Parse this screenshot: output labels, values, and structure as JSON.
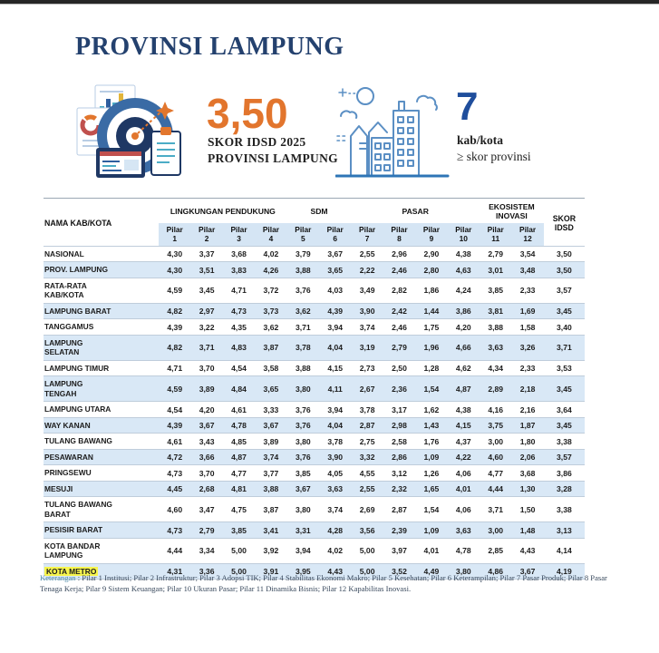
{
  "page": {
    "title": "PROVINSI LAMPUNG"
  },
  "stats": {
    "score": {
      "value": "3,50",
      "label_line1": "SKOR IDSD 2025",
      "label_line2": "PROVINSI LAMPUNG"
    },
    "count": {
      "value": "7",
      "label_line1": "kab/kota",
      "label_line2": "≥ skor provinsi"
    }
  },
  "table": {
    "name_header": "NAMA KAB/KOTA",
    "score_header": "SKOR IDSD",
    "pilar_word": "Pilar",
    "pilar_numbers": [
      "1",
      "2",
      "3",
      "4",
      "5",
      "6",
      "7",
      "8",
      "9",
      "10",
      "11",
      "12"
    ],
    "groups": [
      {
        "label": "LINGKUNGAN PENDUKUNG",
        "span": 4
      },
      {
        "label": "SDM",
        "span": 2
      },
      {
        "label": "PASAR",
        "span": 4
      },
      {
        "label": "EKOSISTEM INOVASI",
        "span": 2
      }
    ],
    "rows": [
      {
        "name": "NASIONAL",
        "values": [
          "4,30",
          "3,37",
          "3,68",
          "4,02",
          "3,79",
          "3,67",
          "2,55",
          "2,96",
          "2,90",
          "4,38",
          "2,79",
          "3,54"
        ],
        "score": "3,50",
        "highlight": false
      },
      {
        "name": "PROV. LAMPUNG",
        "values": [
          "4,30",
          "3,51",
          "3,83",
          "4,26",
          "3,88",
          "3,65",
          "2,22",
          "2,46",
          "2,80",
          "4,63",
          "3,01",
          "3,48"
        ],
        "score": "3,50",
        "highlight": false
      },
      {
        "name": "RATA-RATA\nKAB/KOTA",
        "values": [
          "4,59",
          "3,45",
          "4,71",
          "3,72",
          "3,76",
          "4,03",
          "3,49",
          "2,82",
          "1,86",
          "4,24",
          "3,85",
          "2,33"
        ],
        "score": "3,57",
        "highlight": false
      },
      {
        "name": "LAMPUNG BARAT",
        "values": [
          "4,82",
          "2,97",
          "4,73",
          "3,73",
          "3,62",
          "4,39",
          "3,90",
          "2,42",
          "1,44",
          "3,86",
          "3,81",
          "1,69"
        ],
        "score": "3,45",
        "highlight": false
      },
      {
        "name": "TANGGAMUS",
        "values": [
          "4,39",
          "3,22",
          "4,35",
          "3,62",
          "3,71",
          "3,94",
          "3,74",
          "2,46",
          "1,75",
          "4,20",
          "3,88",
          "1,58"
        ],
        "score": "3,40",
        "highlight": false
      },
      {
        "name": "LAMPUNG\nSELATAN",
        "values": [
          "4,82",
          "3,71",
          "4,83",
          "3,87",
          "3,78",
          "4,04",
          "3,19",
          "2,79",
          "1,96",
          "4,66",
          "3,63",
          "3,26"
        ],
        "score": "3,71",
        "highlight": false
      },
      {
        "name": "LAMPUNG TIMUR",
        "values": [
          "4,71",
          "3,70",
          "4,54",
          "3,58",
          "3,88",
          "4,15",
          "2,73",
          "2,50",
          "1,28",
          "4,62",
          "4,34",
          "2,33"
        ],
        "score": "3,53",
        "highlight": false
      },
      {
        "name": "LAMPUNG\nTENGAH",
        "values": [
          "4,59",
          "3,89",
          "4,84",
          "3,65",
          "3,80",
          "4,11",
          "2,67",
          "2,36",
          "1,54",
          "4,87",
          "2,89",
          "2,18"
        ],
        "score": "3,45",
        "highlight": false
      },
      {
        "name": "LAMPUNG UTARA",
        "values": [
          "4,54",
          "4,20",
          "4,61",
          "3,33",
          "3,76",
          "3,94",
          "3,78",
          "3,17",
          "1,62",
          "4,38",
          "4,16",
          "2,16"
        ],
        "score": "3,64",
        "highlight": false
      },
      {
        "name": "WAY KANAN",
        "values": [
          "4,39",
          "3,67",
          "4,78",
          "3,67",
          "3,76",
          "4,04",
          "2,87",
          "2,98",
          "1,43",
          "4,15",
          "3,75",
          "1,87"
        ],
        "score": "3,45",
        "highlight": false
      },
      {
        "name": "TULANG BAWANG",
        "values": [
          "4,61",
          "3,43",
          "4,85",
          "3,89",
          "3,80",
          "3,78",
          "2,75",
          "2,58",
          "1,76",
          "4,37",
          "3,00",
          "1,80"
        ],
        "score": "3,38",
        "highlight": false
      },
      {
        "name": "PESAWARAN",
        "values": [
          "4,72",
          "3,66",
          "4,87",
          "3,74",
          "3,76",
          "3,90",
          "3,32",
          "2,86",
          "1,09",
          "4,22",
          "4,60",
          "2,06"
        ],
        "score": "3,57",
        "highlight": false
      },
      {
        "name": "PRINGSEWU",
        "values": [
          "4,73",
          "3,70",
          "4,77",
          "3,77",
          "3,85",
          "4,05",
          "4,55",
          "3,12",
          "1,26",
          "4,06",
          "4,77",
          "3,68"
        ],
        "score": "3,86",
        "highlight": false
      },
      {
        "name": "MESUJI",
        "values": [
          "4,45",
          "2,68",
          "4,81",
          "3,88",
          "3,67",
          "3,63",
          "2,55",
          "2,32",
          "1,65",
          "4,01",
          "4,44",
          "1,30"
        ],
        "score": "3,28",
        "highlight": false
      },
      {
        "name": "TULANG BAWANG\nBARAT",
        "values": [
          "4,60",
          "3,47",
          "4,75",
          "3,87",
          "3,80",
          "3,74",
          "2,69",
          "2,87",
          "1,54",
          "4,06",
          "3,71",
          "1,50"
        ],
        "score": "3,38",
        "highlight": false
      },
      {
        "name": "PESISIR BARAT",
        "values": [
          "4,73",
          "2,79",
          "3,85",
          "3,41",
          "3,31",
          "4,28",
          "3,56",
          "2,39",
          "1,09",
          "3,63",
          "3,00",
          "1,48"
        ],
        "score": "3,13",
        "highlight": false
      },
      {
        "name": "KOTA BANDAR\nLAMPUNG",
        "values": [
          "4,44",
          "3,34",
          "5,00",
          "3,92",
          "3,94",
          "4,02",
          "5,00",
          "3,97",
          "4,01",
          "4,78",
          "2,85",
          "4,43"
        ],
        "score": "4,14",
        "highlight": false
      },
      {
        "name": "KOTA METRO",
        "values": [
          "4,31",
          "3,36",
          "5,00",
          "3,91",
          "3,95",
          "4,43",
          "5,00",
          "3,52",
          "4,49",
          "3,80",
          "4,86",
          "3,67"
        ],
        "score": "4,19",
        "highlight": true
      }
    ]
  },
  "footer": {
    "label": "Keterangan",
    "text": ":  Pilar 1 Institusi; Pilar 2 Infrastruktur; Pilar 3 Adopsi TIK; Pilar 4 Stabilitas Ekonomi Makro; Pilar 5 Kesehatan; Pilar 6 Keterampilan; Pilar 7 Pasar Produk; Pilar 8 Pasar Tenaga Kerja; Pilar 9 Sistem Keuangan; Pilar 10 Ukuran Pasar; Pilar 11 Dinamika Bisnis; Pilar 12 Kapabilitas Inovasi."
  },
  "colors": {
    "title_navy": "#24416e",
    "accent_orange": "#e2752d",
    "accent_blue": "#1f4e9c",
    "row_stripe": "#d9e8f6",
    "pilar_header_bg": "#d5e5f4",
    "highlight_yellow": "#f7f54e",
    "keterangan_label": "#4e8aa8"
  }
}
